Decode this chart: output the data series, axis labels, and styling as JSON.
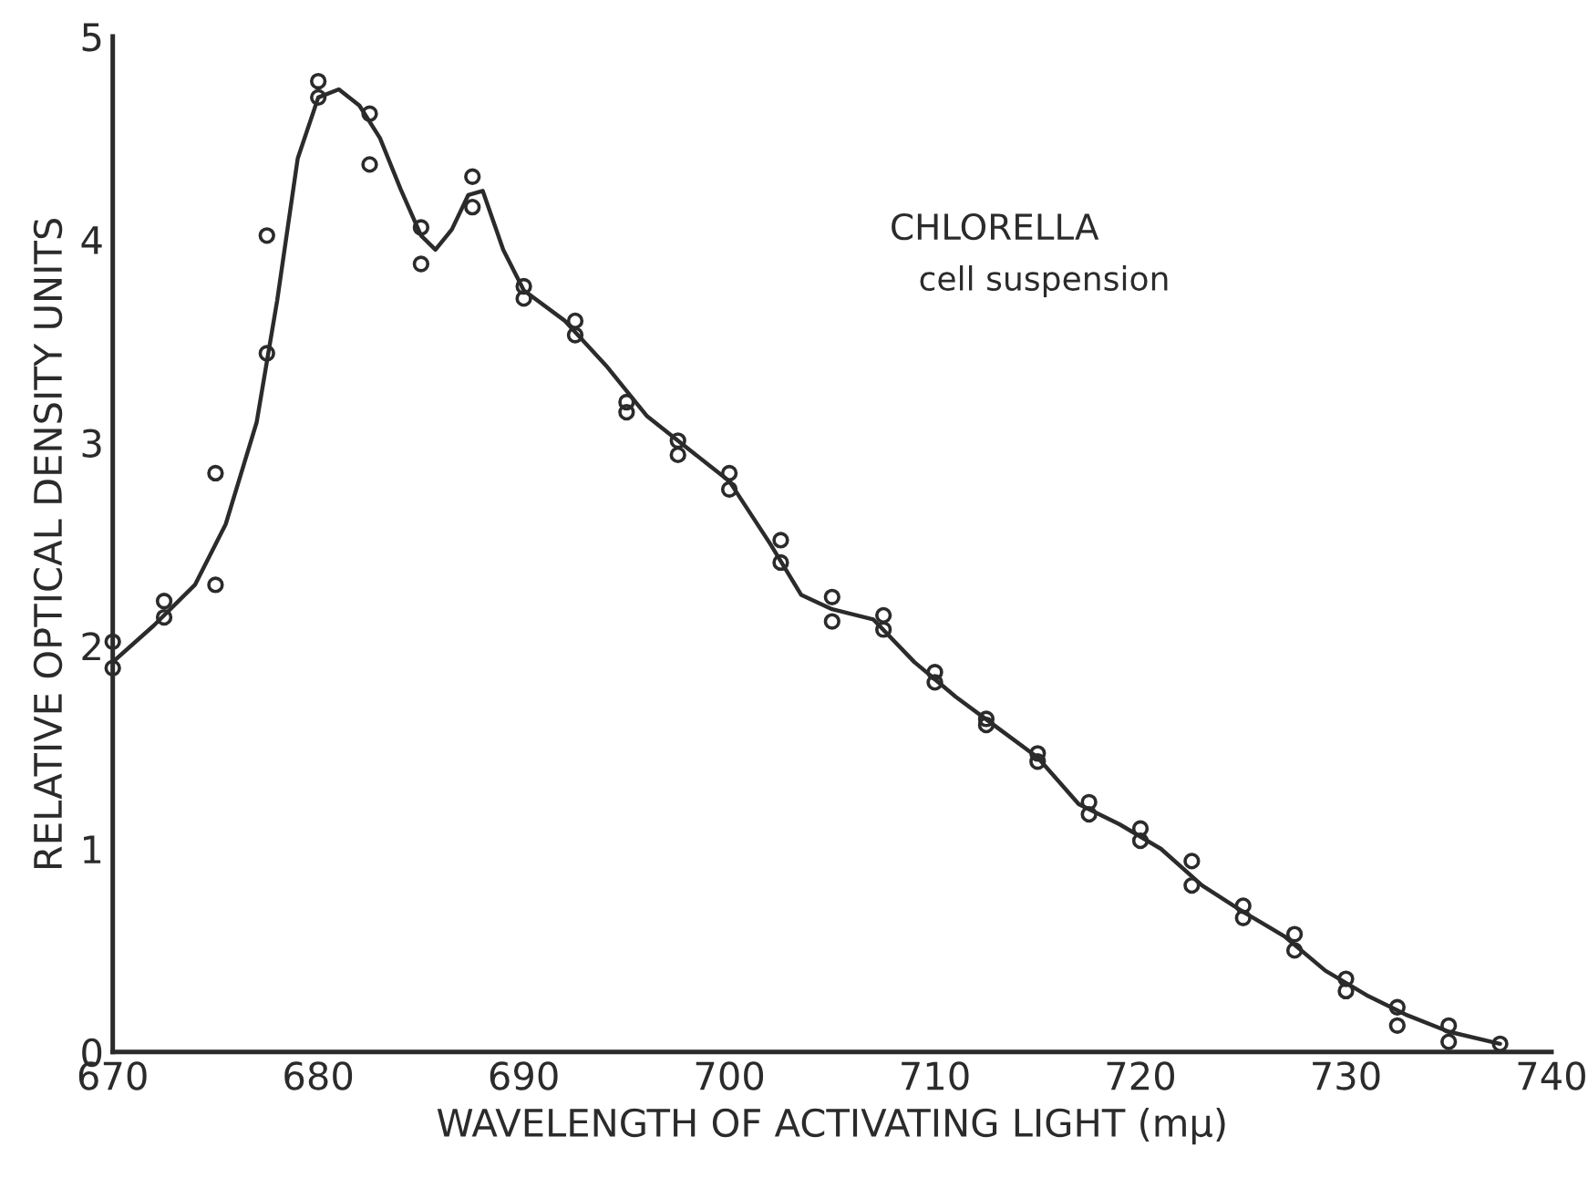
{
  "chart_data": {
    "type": "line",
    "xlabel": "WAVELENGTH OF ACTIVATING LIGHT (mμ)",
    "ylabel": "RELATIVE OPTICAL DENSITY UNITS",
    "annotations": [
      "CHLORELLA",
      "cell suspension"
    ],
    "xlim": [
      670,
      740
    ],
    "xticks": [
      670,
      680,
      690,
      700,
      710,
      720,
      730,
      740
    ],
    "ylim": [
      0,
      5
    ],
    "yticks": [
      0,
      1,
      2,
      3,
      4,
      5
    ],
    "grid": false,
    "legend": false,
    "series": [
      {
        "marker": "none",
        "line_style": "solid",
        "color": "#2b2b2b",
        "x": [
          670,
          672,
          674,
          675.5,
          677,
          678,
          679,
          680,
          681,
          682,
          683,
          684,
          685,
          685.7,
          686.5,
          687.3,
          688,
          689,
          690,
          692,
          694,
          696,
          698,
          700,
          702,
          703.5,
          705,
          707,
          709,
          711,
          713,
          715,
          717,
          719,
          721,
          723,
          725,
          727,
          729,
          731,
          733,
          735,
          737.5
        ],
        "values": [
          1.92,
          2.1,
          2.3,
          2.6,
          3.1,
          3.7,
          4.4,
          4.7,
          4.74,
          4.66,
          4.5,
          4.25,
          4.02,
          3.95,
          4.05,
          4.22,
          4.24,
          3.95,
          3.75,
          3.6,
          3.38,
          3.13,
          2.97,
          2.81,
          2.5,
          2.25,
          2.18,
          2.13,
          1.92,
          1.75,
          1.6,
          1.45,
          1.22,
          1.12,
          1.0,
          0.82,
          0.69,
          0.57,
          0.4,
          0.28,
          0.18,
          0.1,
          0.04
        ]
      },
      {
        "type": "scatter",
        "marker": "circle",
        "color": "#2b2b2b",
        "x": [
          670,
          670,
          672.5,
          672.5,
          675,
          675,
          677.5,
          677.5,
          680,
          680,
          682.5,
          682.5,
          685,
          685,
          687.5,
          687.5,
          690,
          690,
          692.5,
          692.5,
          695,
          695,
          697.5,
          697.5,
          700,
          700,
          702.5,
          702.5,
          705,
          705,
          707.5,
          707.5,
          710,
          710,
          712.5,
          712.5,
          715,
          715,
          717.5,
          717.5,
          720,
          720,
          722.5,
          722.5,
          725,
          725,
          727.5,
          727.5,
          730,
          730,
          732.5,
          732.5,
          735,
          735,
          737.5
        ],
        "values": [
          2.02,
          1.89,
          2.22,
          2.14,
          2.3,
          2.85,
          3.44,
          4.02,
          4.78,
          4.7,
          4.62,
          4.37,
          4.06,
          3.88,
          4.31,
          4.16,
          3.77,
          3.71,
          3.6,
          3.53,
          3.2,
          3.15,
          3.01,
          2.94,
          2.85,
          2.77,
          2.52,
          2.41,
          2.24,
          2.12,
          2.15,
          2.08,
          1.87,
          1.82,
          1.64,
          1.61,
          1.47,
          1.43,
          1.23,
          1.17,
          1.1,
          1.04,
          0.94,
          0.82,
          0.72,
          0.66,
          0.58,
          0.5,
          0.36,
          0.3,
          0.22,
          0.13,
          0.13,
          0.05,
          0.04
        ]
      }
    ]
  }
}
